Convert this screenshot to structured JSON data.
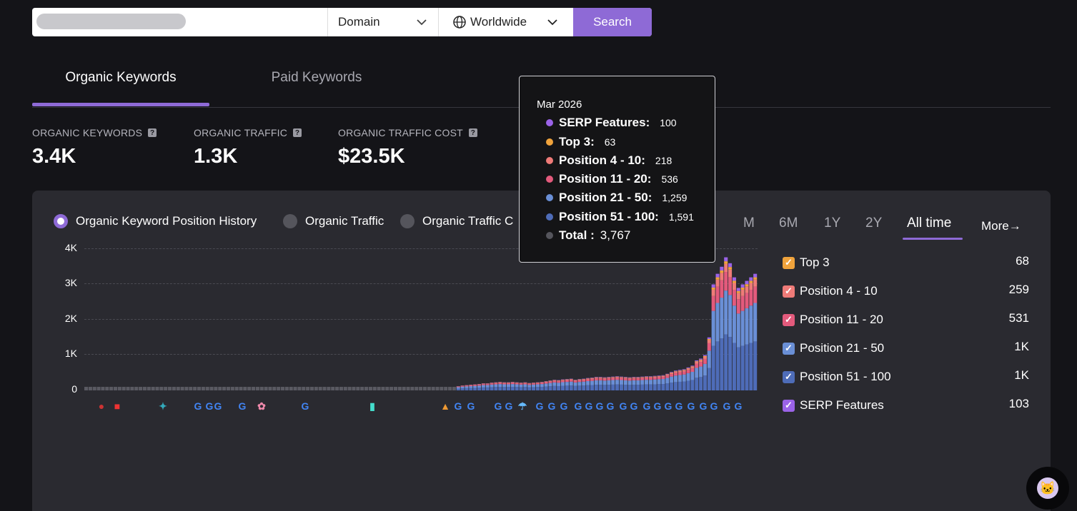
{
  "search": {
    "type_value": "Domain",
    "region_value": "Worldwide",
    "button_label": "Search"
  },
  "tabs": [
    {
      "label": "Organic Keywords",
      "active": true
    },
    {
      "label": "Paid Keywords",
      "active": false
    }
  ],
  "metrics": [
    {
      "label": "ORGANIC KEYWORDS",
      "value": "3.4K"
    },
    {
      "label": "ORGANIC TRAFFIC",
      "value": "1.3K"
    },
    {
      "label": "ORGANIC TRAFFIC COST",
      "value": "$23.5K"
    }
  ],
  "chart_modes": [
    {
      "label": "Organic Keyword Position History",
      "selected": true
    },
    {
      "label": "Organic Traffic",
      "selected": false
    },
    {
      "label": "Organic Traffic C",
      "selected": false
    }
  ],
  "time_ranges": [
    "M",
    "6M",
    "1Y",
    "2Y",
    "All time"
  ],
  "active_time_range": "All time",
  "more_label": "More→",
  "colors": {
    "accent": "#8e6ad6",
    "top3": "#f0a33c",
    "pos4_10": "#ef7b78",
    "pos11_20": "#e35a7c",
    "pos21_50": "#6a8fd6",
    "pos51_100": "#4e6cb8",
    "serp": "#9b63e8"
  },
  "legend": [
    {
      "label": "Top 3",
      "value": "68",
      "color": "#f0a33c"
    },
    {
      "label": "Position 4 - 10",
      "value": "259",
      "color": "#ef7b78"
    },
    {
      "label": "Position 11 - 20",
      "value": "531",
      "color": "#e35a7c"
    },
    {
      "label": "Position 21 - 50",
      "value": "1K",
      "color": "#6a8fd6"
    },
    {
      "label": "Position 51 - 100",
      "value": "1K",
      "color": "#4e6cb8"
    },
    {
      "label": "SERP Features",
      "value": "103",
      "color": "#9b63e8"
    }
  ],
  "tooltip": {
    "date": "Mar 2026",
    "rows": [
      {
        "label": "SERP Features:",
        "value": "100",
        "color": "#9b63e8"
      },
      {
        "label": "Top 3:",
        "value": "63",
        "color": "#f0a33c"
      },
      {
        "label": "Position 4 - 10:",
        "value": "218",
        "color": "#ef7b78"
      },
      {
        "label": "Position 11 - 20:",
        "value": "536",
        "color": "#e35a7c"
      },
      {
        "label": "Position 21 - 50:",
        "value": "1,259",
        "color": "#6a8fd6"
      },
      {
        "label": "Position 51 - 100:",
        "value": "1,591",
        "color": "#4e6cb8"
      }
    ],
    "total_label": "Total :",
    "total_value": "3,767"
  },
  "chart_data": {
    "type": "bar",
    "stacked": true,
    "y_ticks": [
      "4K",
      "3K",
      "2K",
      "1K",
      "0"
    ],
    "ylim": [
      0,
      4000
    ],
    "series_order": [
      "Position 51 - 100",
      "Position 21 - 50",
      "Position 11 - 20",
      "Position 4 - 10",
      "Top 3",
      "SERP Features"
    ],
    "totals": [
      100,
      100,
      100,
      100,
      100,
      100,
      100,
      100,
      100,
      100,
      100,
      100,
      100,
      100,
      100,
      100,
      100,
      100,
      100,
      100,
      100,
      100,
      100,
      100,
      100,
      100,
      100,
      100,
      100,
      100,
      100,
      100,
      100,
      100,
      100,
      100,
      100,
      100,
      100,
      100,
      100,
      100,
      100,
      100,
      100,
      100,
      100,
      100,
      100,
      100,
      100,
      100,
      100,
      100,
      100,
      100,
      100,
      100,
      100,
      100,
      100,
      100,
      100,
      100,
      100,
      100,
      100,
      100,
      100,
      100,
      100,
      100,
      100,
      100,
      100,
      100,
      100,
      100,
      100,
      100,
      100,
      100,
      100,
      100,
      100,
      100,
      100,
      100,
      100,
      120,
      140,
      150,
      160,
      170,
      180,
      200,
      200,
      220,
      230,
      240,
      230,
      230,
      240,
      230,
      220,
      230,
      210,
      220,
      230,
      240,
      260,
      280,
      300,
      290,
      310,
      320,
      330,
      300,
      320,
      330,
      350,
      360,
      380,
      380,
      370,
      380,
      390,
      400,
      390,
      380,
      370,
      380,
      380,
      390,
      400,
      400,
      410,
      420,
      430,
      470,
      520,
      560,
      580,
      600,
      650,
      700,
      850,
      900,
      1000,
      1500,
      3000,
      3300,
      3500,
      3767,
      3600,
      3200,
      2900,
      3000,
      3100,
      3200,
      3300
    ]
  }
}
